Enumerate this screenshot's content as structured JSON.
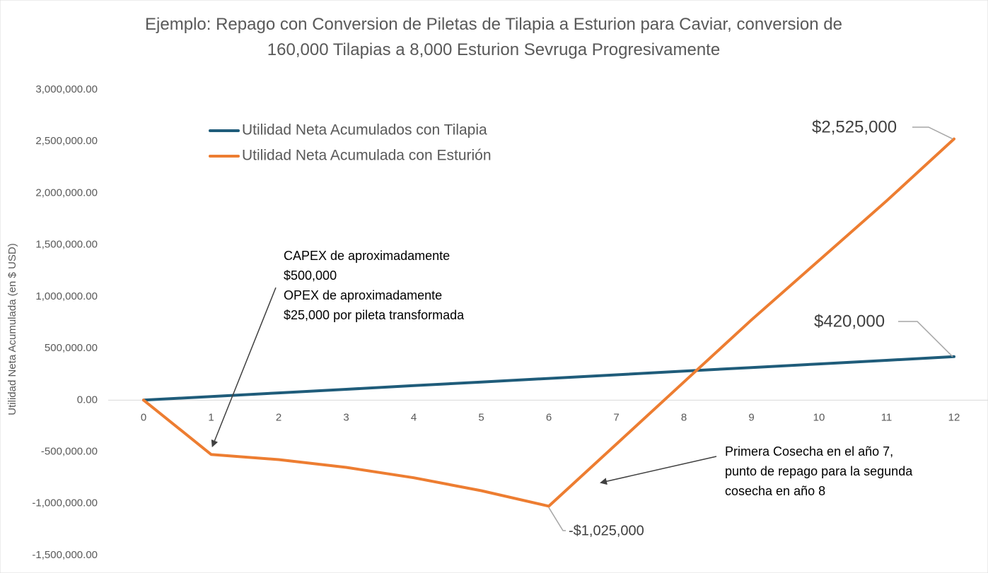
{
  "chart_data": {
    "type": "line",
    "title": "Ejemplo: Repago con Conversion de Piletas de Tilapia a Esturion para Caviar, conversion de 160,000 Tilapias a 8,000 Esturion Sevruga Progresivamente",
    "title_lines": [
      "Ejemplo: Repago con Conversion de Piletas de Tilapia a Esturion para Caviar, conversion de",
      "160,000 Tilapias a 8,000 Esturion Sevruga Progresivamente"
    ],
    "xlabel": "",
    "ylabel": "Utilidad Neta Acumulada (en $ USD)",
    "ylim": [
      -1500000,
      3000000
    ],
    "y_ticks": [
      3000000,
      2500000,
      2000000,
      1500000,
      1000000,
      500000,
      0,
      -500000,
      -1000000,
      -1500000
    ],
    "y_tick_labels": [
      "3,000,000.00",
      "2,500,000.00",
      "2,000,000.00",
      "1,500,000.00",
      "1,000,000.00",
      "500,000.00",
      "0.00",
      "-500,000.00",
      "-1,000,000.00",
      "-1,500,000.00"
    ],
    "x": [
      0,
      1,
      2,
      3,
      4,
      5,
      6,
      7,
      8,
      9,
      10,
      11,
      12
    ],
    "x_tick_labels": [
      "0",
      "1",
      "2",
      "3",
      "4",
      "5",
      "6",
      "7",
      "8",
      "9",
      "10",
      "11",
      "12"
    ],
    "grid": false,
    "legend_position": "top-left",
    "series": [
      {
        "name": "Utilidad Neta Acumulados con Tilapia",
        "color": "#1f5c7a",
        "values": [
          0,
          35000,
          70000,
          105000,
          140000,
          175000,
          210000,
          245000,
          280000,
          315000,
          350000,
          385000,
          420000
        ]
      },
      {
        "name": "Utilidad Neta Acumulada con Esturión",
        "color": "#ed7d31",
        "values": [
          0,
          -525000,
          -575000,
          -650000,
          -750000,
          -875000,
          -1025000,
          -425000,
          175000,
          775000,
          1350000,
          1925000,
          2525000
        ]
      }
    ],
    "data_labels": [
      {
        "text": "$2,525,000",
        "series": 1,
        "x": 12
      },
      {
        "text": "$420,000",
        "series": 0,
        "x": 12
      },
      {
        "text": "-$1,025,000",
        "series": 1,
        "x": 6
      }
    ],
    "annotations": [
      {
        "lines": [
          "CAPEX de aproximadamente",
          "$500,000",
          "OPEX de aproximadamente",
          "$25,000 por pileta transformada"
        ],
        "points_to": {
          "series": 1,
          "x": 1
        }
      },
      {
        "lines": [
          "Primera Cosecha en el año 7,",
          "punto de repago para la segunda",
          "cosecha en año 8"
        ],
        "points_to": {
          "series": 1,
          "x": 7.7
        }
      }
    ]
  }
}
